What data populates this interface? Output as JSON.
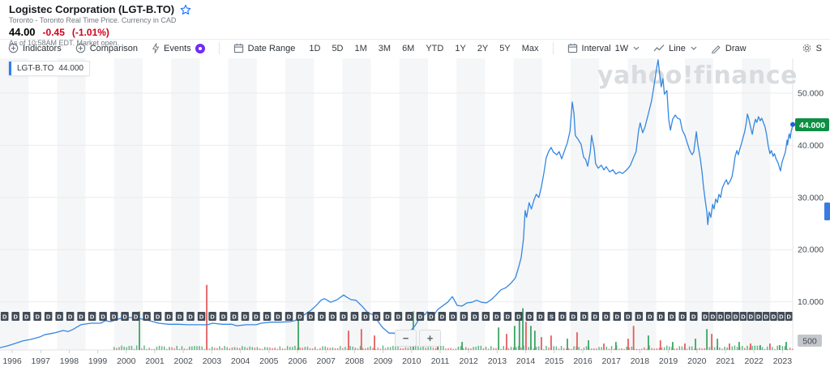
{
  "header": {
    "title": "Logistec Corporation (LGT-B.TO)",
    "subtitle": "Toronto - Toronto Real Time Price. Currency in CAD",
    "price": "44.00",
    "change": "-0.45",
    "change_pct": "(-1.01%)",
    "as_of": "As of 10:58AM EDT. Market open."
  },
  "toolbar": {
    "indicators": "Indicators",
    "comparison": "Comparison",
    "events": "Events",
    "date_range": "Date Range",
    "ranges": [
      "1D",
      "5D",
      "1M",
      "3M",
      "6M",
      "YTD",
      "1Y",
      "2Y",
      "5Y",
      "Max"
    ],
    "interval_label": "Interval",
    "interval_value": "1W",
    "chart_type": "Line",
    "draw": "Draw",
    "settings_partial": "S"
  },
  "legend": {
    "symbol": "LGT-B.TO",
    "value": "44.000"
  },
  "chart": {
    "watermark": "yahoo!finance",
    "current_price_badge": "44.000",
    "volume_tick": "500",
    "accent_blue": "#3487e2",
    "badge_green": "#0f8f45",
    "volume_up_color": "#3da566",
    "volume_down_color": "#e25f5f"
  },
  "chart_data": {
    "type": "line",
    "symbol": "LGT-B.TO",
    "currency": "CAD",
    "interval": "1W",
    "x_axis": {
      "tick_labels": [
        "1996",
        "1997",
        "1998",
        "1999",
        "2000",
        "2001",
        "2002",
        "2003",
        "2004",
        "2005",
        "2006",
        "2007",
        "2008",
        "2009",
        "2010",
        "2011",
        "2012",
        "2013",
        "2014",
        "2015",
        "2016",
        "2017",
        "2018",
        "2019",
        "2020",
        "2021",
        "2022",
        "2023"
      ]
    },
    "y_axis": {
      "range": [
        0,
        57
      ],
      "ticks": [
        {
          "value": 50,
          "label": "50.000"
        },
        {
          "value": 40,
          "label": "40.000"
        },
        {
          "value": 30,
          "label": "30.000"
        },
        {
          "value": 20,
          "label": "20.000"
        },
        {
          "value": 10,
          "label": "10.000"
        }
      ]
    },
    "last_price": 44.0,
    "series": [
      {
        "name": "LGT-B.TO price (CAD)",
        "points": [
          [
            1995.57,
            1.2
          ],
          [
            1995.86,
            1.6
          ],
          [
            1996.09,
            2.0
          ],
          [
            1996.37,
            2.5
          ],
          [
            1996.65,
            2.8
          ],
          [
            1996.99,
            3.3
          ],
          [
            1997.14,
            3.7
          ],
          [
            1997.45,
            4.0
          ],
          [
            1997.79,
            4.5
          ],
          [
            1997.96,
            4.3
          ],
          [
            1998.13,
            4.7
          ],
          [
            1998.41,
            5.6
          ],
          [
            1998.76,
            5.9
          ],
          [
            1999.1,
            5.9
          ],
          [
            1999.27,
            6.4
          ],
          [
            1999.44,
            6.2
          ],
          [
            1999.78,
            6.8
          ],
          [
            2000.12,
            7.0
          ],
          [
            2000.46,
            6.8
          ],
          [
            2000.8,
            6.4
          ],
          [
            2001.14,
            5.9
          ],
          [
            2001.48,
            5.7
          ],
          [
            2001.82,
            5.7
          ],
          [
            2002.16,
            5.6
          ],
          [
            2002.5,
            5.6
          ],
          [
            2002.85,
            5.6
          ],
          [
            2003.02,
            5.9
          ],
          [
            2003.36,
            5.7
          ],
          [
            2003.7,
            5.7
          ],
          [
            2003.87,
            5.4
          ],
          [
            2004.21,
            5.6
          ],
          [
            2004.55,
            5.6
          ],
          [
            2004.72,
            5.9
          ],
          [
            2005.06,
            6.1
          ],
          [
            2005.4,
            6.1
          ],
          [
            2005.74,
            6.2
          ],
          [
            2005.91,
            6.4
          ],
          [
            2006.03,
            6.8
          ],
          [
            2006.26,
            7.6
          ],
          [
            2006.48,
            8.4
          ],
          [
            2006.71,
            9.6
          ],
          [
            2006.82,
            10.3
          ],
          [
            2006.94,
            10.6
          ],
          [
            2007.05,
            10.3
          ],
          [
            2007.16,
            9.9
          ],
          [
            2007.39,
            10.4
          ],
          [
            2007.62,
            11.3
          ],
          [
            2007.7,
            11.0
          ],
          [
            2007.88,
            10.4
          ],
          [
            2008.05,
            10.3
          ],
          [
            2008.24,
            9.3
          ],
          [
            2008.47,
            7.9
          ],
          [
            2008.67,
            7.5
          ],
          [
            2008.76,
            6.7
          ],
          [
            2008.98,
            5.1
          ],
          [
            2009.21,
            4.0
          ],
          [
            2009.38,
            4.0
          ],
          [
            2009.49,
            3.6
          ],
          [
            2009.6,
            3.9
          ],
          [
            2009.72,
            3.4
          ],
          [
            2009.92,
            4.2
          ],
          [
            2010.12,
            5.4
          ],
          [
            2010.29,
            7.0
          ],
          [
            2010.37,
            7.9
          ],
          [
            2010.46,
            7.5
          ],
          [
            2010.55,
            8.1
          ],
          [
            2010.74,
            7.1
          ],
          [
            2010.91,
            8.5
          ],
          [
            2011.08,
            9.2
          ],
          [
            2011.26,
            9.9
          ],
          [
            2011.43,
            11.0
          ],
          [
            2011.6,
            9.3
          ],
          [
            2011.77,
            9.2
          ],
          [
            2011.94,
            9.8
          ],
          [
            2012.11,
            9.9
          ],
          [
            2012.28,
            10.3
          ],
          [
            2012.45,
            9.9
          ],
          [
            2012.62,
            9.8
          ],
          [
            2012.79,
            10.4
          ],
          [
            2012.96,
            11.3
          ],
          [
            2013.13,
            12.3
          ],
          [
            2013.3,
            12.7
          ],
          [
            2013.47,
            13.5
          ],
          [
            2013.64,
            14.6
          ],
          [
            2013.75,
            16.6
          ],
          [
            2013.84,
            18.5
          ],
          [
            2013.92,
            22.0
          ],
          [
            2013.98,
            27.5
          ],
          [
            2014.03,
            26.2
          ],
          [
            2014.12,
            29.0
          ],
          [
            2014.2,
            27.8
          ],
          [
            2014.29,
            29.5
          ],
          [
            2014.37,
            30.6
          ],
          [
            2014.46,
            30.0
          ],
          [
            2014.55,
            32.1
          ],
          [
            2014.63,
            34.5
          ],
          [
            2014.72,
            37.6
          ],
          [
            2014.8,
            38.8
          ],
          [
            2014.89,
            39.6
          ],
          [
            2014.97,
            38.7
          ],
          [
            2015.09,
            38.2
          ],
          [
            2015.17,
            38.8
          ],
          [
            2015.26,
            37.4
          ],
          [
            2015.38,
            39.3
          ],
          [
            2015.46,
            40.5
          ],
          [
            2015.55,
            42.7
          ],
          [
            2015.63,
            48.3
          ],
          [
            2015.69,
            46.1
          ],
          [
            2015.74,
            41.9
          ],
          [
            2015.83,
            41.2
          ],
          [
            2015.94,
            40.2
          ],
          [
            2016.03,
            37.7
          ],
          [
            2016.1,
            37.3
          ],
          [
            2016.17,
            36.0
          ],
          [
            2016.26,
            38.7
          ],
          [
            2016.31,
            41.9
          ],
          [
            2016.4,
            39.3
          ],
          [
            2016.45,
            36.5
          ],
          [
            2016.54,
            35.6
          ],
          [
            2016.65,
            36.2
          ],
          [
            2016.74,
            35.3
          ],
          [
            2016.82,
            35.9
          ],
          [
            2016.94,
            34.9
          ],
          [
            2017.05,
            35.3
          ],
          [
            2017.16,
            34.5
          ],
          [
            2017.28,
            34.9
          ],
          [
            2017.39,
            34.6
          ],
          [
            2017.5,
            35.1
          ],
          [
            2017.59,
            35.6
          ],
          [
            2017.67,
            36.2
          ],
          [
            2017.78,
            37.7
          ],
          [
            2017.87,
            38.8
          ],
          [
            2017.96,
            43.0
          ],
          [
            2018.01,
            44.3
          ],
          [
            2018.1,
            42.4
          ],
          [
            2018.18,
            43.5
          ],
          [
            2018.3,
            46.1
          ],
          [
            2018.41,
            48.5
          ],
          [
            2018.49,
            51.1
          ],
          [
            2018.58,
            54.5
          ],
          [
            2018.64,
            56.4
          ],
          [
            2018.69,
            53.9
          ],
          [
            2018.75,
            51.2
          ],
          [
            2018.81,
            52.8
          ],
          [
            2018.86,
            49.8
          ],
          [
            2018.95,
            50.5
          ],
          [
            2019.01,
            45.0
          ],
          [
            2019.07,
            42.9
          ],
          [
            2019.15,
            45.0
          ],
          [
            2019.24,
            45.8
          ],
          [
            2019.32,
            45.2
          ],
          [
            2019.41,
            45.0
          ],
          [
            2019.49,
            42.9
          ],
          [
            2019.58,
            41.9
          ],
          [
            2019.66,
            40.5
          ],
          [
            2019.75,
            39.0
          ],
          [
            2019.83,
            38.2
          ],
          [
            2019.89,
            38.7
          ],
          [
            2019.98,
            42.6
          ],
          [
            2020.03,
            40.2
          ],
          [
            2020.12,
            37.4
          ],
          [
            2020.18,
            34.9
          ],
          [
            2020.23,
            32.1
          ],
          [
            2020.29,
            29.5
          ],
          [
            2020.35,
            27.2
          ],
          [
            2020.38,
            24.8
          ],
          [
            2020.43,
            27.2
          ],
          [
            2020.49,
            26.2
          ],
          [
            2020.55,
            28.7
          ],
          [
            2020.6,
            27.8
          ],
          [
            2020.66,
            29.7
          ],
          [
            2020.72,
            29.0
          ],
          [
            2020.77,
            30.6
          ],
          [
            2020.83,
            30.0
          ],
          [
            2020.89,
            31.8
          ],
          [
            2020.97,
            32.8
          ],
          [
            2021.03,
            33.4
          ],
          [
            2021.09,
            32.5
          ],
          [
            2021.17,
            33.2
          ],
          [
            2021.23,
            34.0
          ],
          [
            2021.28,
            35.6
          ],
          [
            2021.34,
            37.9
          ],
          [
            2021.4,
            39.0
          ],
          [
            2021.45,
            38.2
          ],
          [
            2021.51,
            39.4
          ],
          [
            2021.57,
            40.5
          ],
          [
            2021.62,
            41.5
          ],
          [
            2021.68,
            42.7
          ],
          [
            2021.74,
            44.6
          ],
          [
            2021.77,
            46.0
          ],
          [
            2021.82,
            45.0
          ],
          [
            2021.88,
            43.5
          ],
          [
            2021.94,
            42.1
          ],
          [
            2021.99,
            43.6
          ],
          [
            2022.05,
            45.0
          ],
          [
            2022.1,
            44.4
          ],
          [
            2022.16,
            45.5
          ],
          [
            2022.22,
            44.7
          ],
          [
            2022.27,
            45.2
          ],
          [
            2022.33,
            44.4
          ],
          [
            2022.39,
            43.5
          ],
          [
            2022.44,
            42.1
          ],
          [
            2022.5,
            39.9
          ],
          [
            2022.56,
            38.4
          ],
          [
            2022.61,
            39.0
          ],
          [
            2022.67,
            37.9
          ],
          [
            2022.72,
            38.4
          ],
          [
            2022.78,
            37.3
          ],
          [
            2022.84,
            36.7
          ],
          [
            2022.9,
            35.6
          ],
          [
            2022.93,
            35.1
          ],
          [
            2022.98,
            36.7
          ],
          [
            2023.04,
            37.7
          ],
          [
            2023.1,
            38.7
          ],
          [
            2023.13,
            39.8
          ],
          [
            2023.16,
            41.0
          ],
          [
            2023.18,
            40.1
          ],
          [
            2023.21,
            41.6
          ],
          [
            2023.24,
            42.2
          ],
          [
            2023.27,
            41.3
          ],
          [
            2023.3,
            42.6
          ],
          [
            2023.33,
            43.2
          ],
          [
            2023.36,
            44.0
          ]
        ]
      }
    ],
    "volume": {
      "axis_tick": 500,
      "spikes": [
        [
          2000.46,
          2160,
          "g"
        ],
        [
          2002.82,
          3650,
          "r"
        ],
        [
          2006.03,
          1800,
          "g"
        ],
        [
          2007.79,
          1080,
          "r"
        ],
        [
          2008.24,
          1170,
          "r"
        ],
        [
          2008.7,
          810,
          "r"
        ],
        [
          2010.06,
          2160,
          "g"
        ],
        [
          2010.91,
          630,
          "r"
        ],
        [
          2011.77,
          450,
          "g"
        ],
        [
          2013.05,
          1260,
          "g"
        ],
        [
          2013.33,
          900,
          "r"
        ],
        [
          2013.61,
          1350,
          "g"
        ],
        [
          2013.78,
          2070,
          "g"
        ],
        [
          2013.9,
          2340,
          "g"
        ],
        [
          2014.01,
          1575,
          "r"
        ],
        [
          2014.18,
          1350,
          "g"
        ],
        [
          2014.32,
          1080,
          "g"
        ],
        [
          2014.55,
          720,
          "r"
        ],
        [
          2014.89,
          810,
          "r"
        ],
        [
          2015.46,
          630,
          "g"
        ],
        [
          2015.8,
          990,
          "r"
        ],
        [
          2016.2,
          540,
          "g"
        ],
        [
          2016.74,
          360,
          "r"
        ],
        [
          2017.16,
          450,
          "g"
        ],
        [
          2017.59,
          630,
          "r"
        ],
        [
          2017.78,
          1350,
          "r"
        ],
        [
          2018.3,
          810,
          "g"
        ],
        [
          2018.72,
          540,
          "r"
        ],
        [
          2019.15,
          450,
          "g"
        ],
        [
          2019.58,
          360,
          "r"
        ],
        [
          2019.95,
          630,
          "g"
        ],
        [
          2020.35,
          1170,
          "g"
        ],
        [
          2020.52,
          900,
          "r"
        ],
        [
          2020.72,
          630,
          "g"
        ],
        [
          2021.14,
          360,
          "r"
        ],
        [
          2021.48,
          450,
          "g"
        ],
        [
          2021.88,
          360,
          "r"
        ],
        [
          2022.22,
          270,
          "g"
        ],
        [
          2022.56,
          360,
          "r"
        ],
        [
          2022.9,
          270,
          "g"
        ],
        [
          2023.13,
          450,
          "g"
        ]
      ]
    },
    "dividend_markers": {
      "label": "D",
      "split_label": "S",
      "rows": [
        {
          "from_year": 1995.6,
          "to_year": 2019.75,
          "count": 64,
          "split_index": 50
        },
        {
          "from_year": 2020.17,
          "to_year": 2023.1,
          "count": 12
        }
      ]
    }
  }
}
